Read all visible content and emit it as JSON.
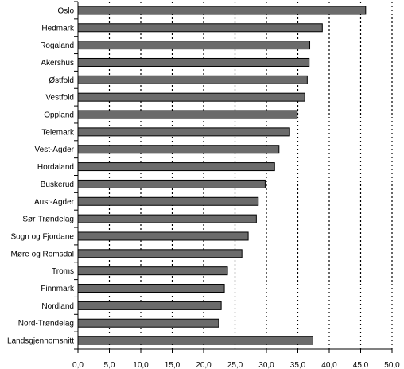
{
  "chart_data": {
    "type": "bar",
    "orientation": "horizontal",
    "title": "",
    "xlabel": "",
    "ylabel": "",
    "categories": [
      "Oslo",
      "Hedmark",
      "Rogaland",
      "Akershus",
      "Østfold",
      "Vestfold",
      "Oppland",
      "Telemark",
      "Vest-Agder",
      "Hordaland",
      "Buskerud",
      "Aust-Agder",
      "Sør-Trøndelag",
      "Sogn og Fjordane",
      "Møre og Romsdal",
      "Troms",
      "Finnmark",
      "Nordland",
      "Nord-Trøndelag",
      "Landsgjennomsnitt"
    ],
    "values": [
      45.8,
      38.9,
      36.9,
      36.8,
      36.5,
      36.1,
      34.9,
      33.7,
      32.0,
      31.3,
      29.8,
      28.7,
      28.4,
      27.1,
      26.1,
      23.8,
      23.3,
      22.8,
      22.4,
      37.4
    ],
    "xlim": [
      0,
      50
    ],
    "tick_step": 5,
    "tick_labels": [
      "0,0",
      "5,0",
      "10,0",
      "15,0",
      "20,0",
      "25,0",
      "30,0",
      "35,0",
      "40,0",
      "45,0",
      "50,0"
    ],
    "grid": "vertical-dotted",
    "bar_color": "#6b6b6b",
    "legend": "none"
  }
}
